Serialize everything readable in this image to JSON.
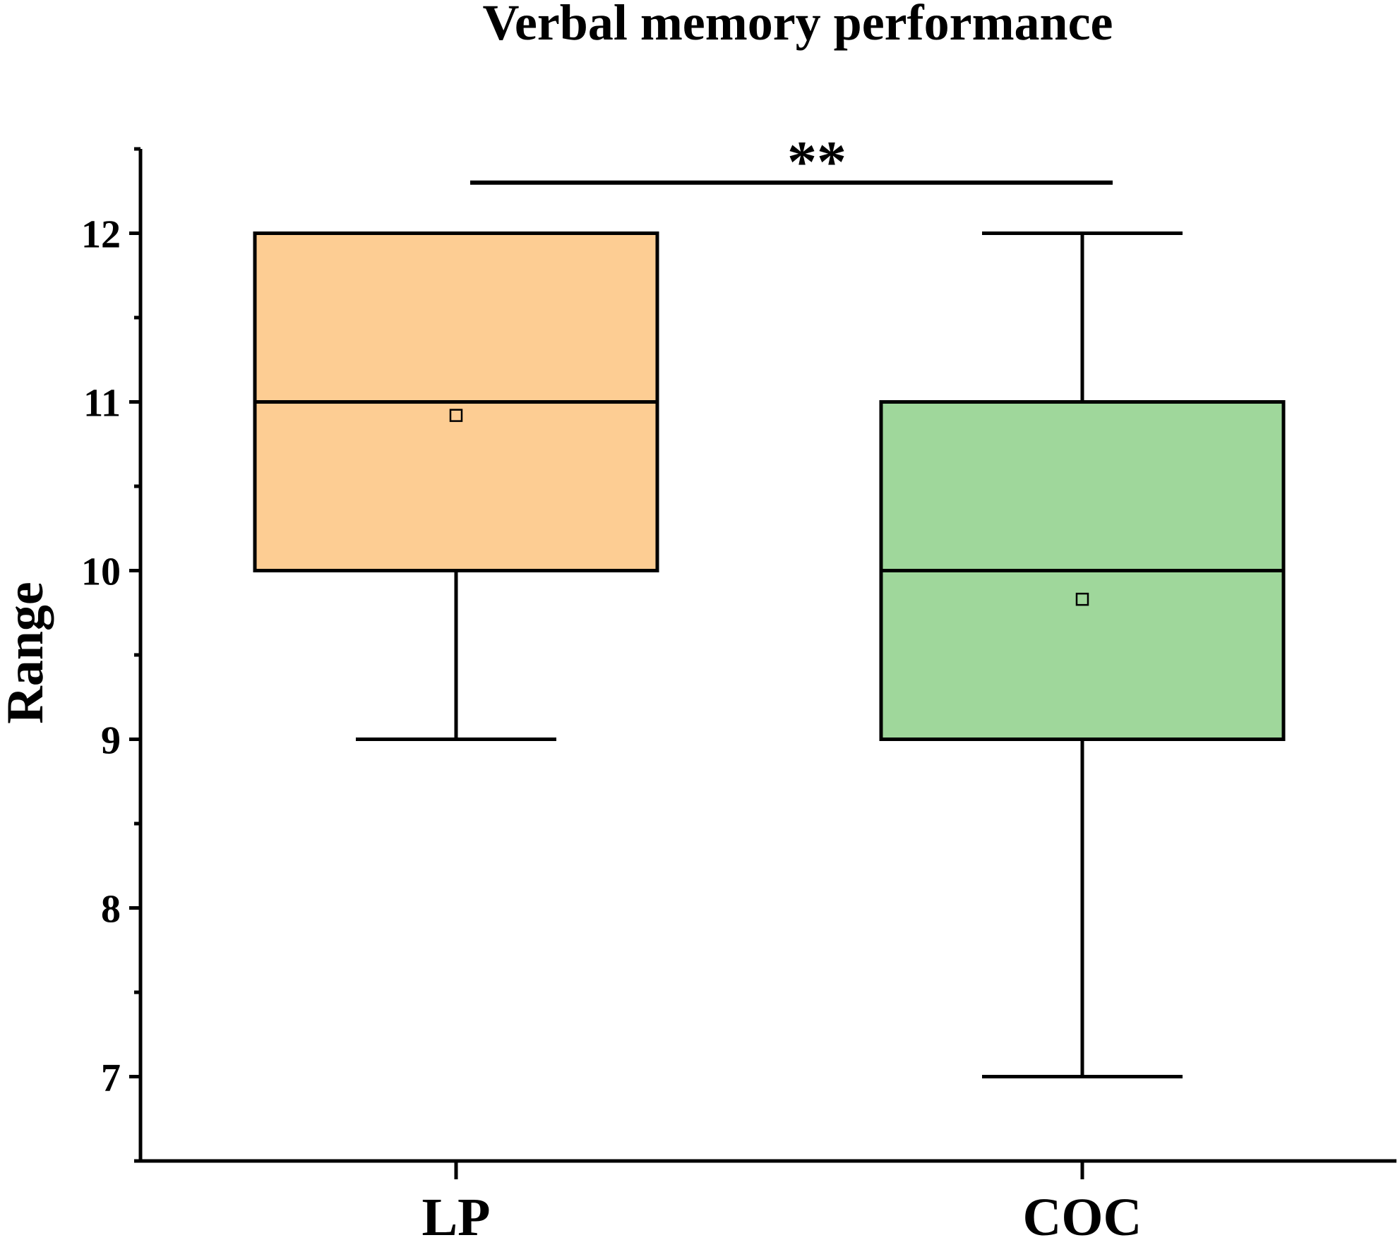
{
  "chart_data": {
    "type": "box",
    "title": "Verbal memory performance",
    "xlabel": "",
    "ylabel": "Range",
    "ylim": [
      6.5,
      12.5
    ],
    "yticks": [
      7,
      8,
      9,
      10,
      11,
      12
    ],
    "ytick_labels": [
      "7",
      "8",
      "9",
      "10",
      "11",
      "12"
    ],
    "categories": [
      "LP",
      "COC"
    ],
    "boxes": [
      {
        "name": "LP",
        "min": 9,
        "q1": 10,
        "median": 11,
        "q3": 12,
        "max": 12,
        "mean": 10.92,
        "color": "#fdcd93"
      },
      {
        "name": "COC",
        "min": 7,
        "q1": 9,
        "median": 10,
        "q3": 11,
        "max": 12,
        "mean": 9.83,
        "color": "#9fd79b"
      }
    ],
    "significance": {
      "label": "**",
      "between": [
        "LP",
        "COC"
      ],
      "y": 12.3
    }
  }
}
